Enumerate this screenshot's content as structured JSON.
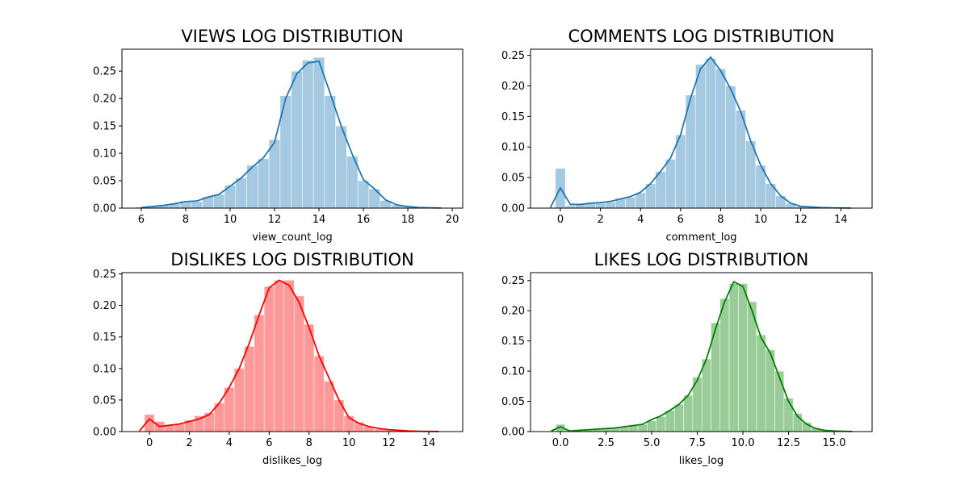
{
  "chart_data": [
    {
      "type": "histogram",
      "title": "VIEWS LOG DISTRIBUTION",
      "xlabel": "view_count_log",
      "color": "#1f77b4",
      "bins": [
        5.75,
        6.25,
        6.75,
        7.25,
        7.75,
        8.25,
        8.75,
        9.25,
        9.75,
        10.25,
        10.75,
        11.25,
        11.75,
        12.25,
        12.75,
        13.25,
        13.75,
        14.25,
        14.75,
        15.25,
        15.75,
        16.25,
        16.75,
        17.25,
        17.75,
        18.25,
        18.75,
        19.25,
        19.75
      ],
      "counts": [
        0.002,
        0.003,
        0.005,
        0.008,
        0.013,
        0.012,
        0.021,
        0.025,
        0.042,
        0.055,
        0.078,
        0.09,
        0.125,
        0.205,
        0.25,
        0.27,
        0.275,
        0.205,
        0.15,
        0.095,
        0.05,
        0.035,
        0.014,
        0.006,
        0.003,
        0.001,
        0.0006,
        0.0002
      ],
      "kde": {
        "x": [
          6,
          6.5,
          7,
          7.5,
          8,
          8.5,
          9,
          9.5,
          10,
          10.5,
          11,
          11.5,
          12,
          12.5,
          13,
          13.5,
          14,
          14.5,
          15,
          15.5,
          16,
          16.5,
          17,
          17.5,
          18,
          18.5,
          19,
          19.5
        ],
        "values": [
          0.001,
          0.003,
          0.005,
          0.008,
          0.012,
          0.013,
          0.02,
          0.025,
          0.04,
          0.055,
          0.075,
          0.092,
          0.12,
          0.2,
          0.245,
          0.265,
          0.268,
          0.21,
          0.15,
          0.098,
          0.052,
          0.035,
          0.015,
          0.006,
          0.003,
          0.001,
          0.0005,
          0.0002
        ]
      },
      "xlim": [
        5.13,
        20.47
      ],
      "ylim": [
        0,
        0.29
      ],
      "xticks": [
        6,
        8,
        10,
        12,
        14,
        16,
        18,
        20
      ],
      "yticks": [
        {
          "value": 0,
          "label": "0.00"
        },
        {
          "value": 0.05,
          "label": "0.05"
        },
        {
          "value": 0.1,
          "label": "0.10"
        },
        {
          "value": 0.15,
          "label": "0.15"
        },
        {
          "value": 0.2,
          "label": "0.20"
        },
        {
          "value": 0.25,
          "label": "0.25"
        }
      ]
    },
    {
      "type": "histogram",
      "title": "COMMENTS LOG DISTRIBUTION",
      "xlabel": "comment_log",
      "color": "#1f77b4",
      "bins": [
        -0.25,
        0.25,
        0.75,
        1.25,
        1.75,
        2.25,
        2.75,
        3.25,
        3.75,
        4.25,
        4.75,
        5.25,
        5.75,
        6.25,
        6.75,
        7.25,
        7.75,
        8.25,
        8.75,
        9.25,
        9.75,
        10.25,
        10.75,
        11.25,
        11.75,
        12.25,
        12.75,
        13.25,
        13.75,
        14.25,
        14.75
      ],
      "counts": [
        0.065,
        0.004,
        0.006,
        0.007,
        0.008,
        0.01,
        0.016,
        0.018,
        0.025,
        0.04,
        0.06,
        0.08,
        0.12,
        0.185,
        0.235,
        0.245,
        0.228,
        0.2,
        0.16,
        0.11,
        0.07,
        0.04,
        0.02,
        0.008,
        0.003,
        0.002,
        0.001,
        0.0005,
        0.0003,
        0.0001
      ],
      "kde": {
        "x": [
          -0.5,
          0,
          0.5,
          1,
          1.5,
          2,
          2.5,
          3,
          3.5,
          4,
          4.5,
          5,
          5.5,
          6,
          6.5,
          7,
          7.5,
          8,
          8.5,
          9,
          9.5,
          10,
          10.5,
          11,
          11.5,
          12,
          12.5,
          13,
          13.5,
          14,
          14.5
        ],
        "values": [
          0.001,
          0.033,
          0.006,
          0.006,
          0.008,
          0.009,
          0.011,
          0.015,
          0.019,
          0.026,
          0.04,
          0.06,
          0.082,
          0.12,
          0.18,
          0.228,
          0.247,
          0.225,
          0.195,
          0.158,
          0.11,
          0.07,
          0.04,
          0.02,
          0.008,
          0.003,
          0.002,
          0.001,
          0.0005,
          0.0003,
          0.0001
        ]
      },
      "xlim": [
        -1.49,
        15.56
      ],
      "ylim": [
        0,
        0.26
      ],
      "xticks": [
        0,
        2,
        4,
        6,
        8,
        10,
        12,
        14
      ],
      "yticks": [
        {
          "value": 0,
          "label": "0.00"
        },
        {
          "value": 0.05,
          "label": "0.05"
        },
        {
          "value": 0.1,
          "label": "0.10"
        },
        {
          "value": 0.15,
          "label": "0.15"
        },
        {
          "value": 0.2,
          "label": "0.20"
        },
        {
          "value": 0.25,
          "label": "0.25"
        }
      ]
    },
    {
      "type": "histogram",
      "title": "DISLIKES LOG DISTRIBUTION",
      "xlabel": "dislikes_log",
      "color": "#ff0000",
      "bins": [
        -0.25,
        0.25,
        0.75,
        1.25,
        1.75,
        2.25,
        2.75,
        3.25,
        3.75,
        4.25,
        4.75,
        5.25,
        5.75,
        6.25,
        6.75,
        7.25,
        7.75,
        8.25,
        8.75,
        9.25,
        9.75,
        10.25,
        10.75,
        11.25,
        11.75,
        12.25,
        12.75,
        13.25,
        13.75,
        14.25,
        14.75
      ],
      "counts": [
        0.027,
        0.016,
        0.01,
        0.012,
        0.018,
        0.025,
        0.03,
        0.045,
        0.07,
        0.1,
        0.135,
        0.185,
        0.23,
        0.24,
        0.24,
        0.215,
        0.17,
        0.12,
        0.08,
        0.05,
        0.025,
        0.015,
        0.008,
        0.004,
        0.003,
        0.002,
        0.001,
        0.0005,
        0.0003,
        0.0001
      ],
      "kde": {
        "x": [
          -0.5,
          0,
          0.5,
          1,
          1.5,
          2,
          2.5,
          3,
          3.5,
          4,
          4.5,
          5,
          5.5,
          6,
          6.5,
          7,
          7.5,
          8,
          8.5,
          9,
          9.5,
          10,
          10.5,
          11,
          11.5,
          12,
          12.5,
          13,
          13.5,
          14,
          14.5
        ],
        "values": [
          0.001,
          0.02,
          0.008,
          0.01,
          0.012,
          0.016,
          0.02,
          0.027,
          0.045,
          0.07,
          0.1,
          0.14,
          0.185,
          0.228,
          0.24,
          0.232,
          0.205,
          0.165,
          0.12,
          0.085,
          0.05,
          0.022,
          0.013,
          0.008,
          0.005,
          0.003,
          0.002,
          0.001,
          0.0005,
          0.0003,
          0.0001
        ]
      },
      "xlim": [
        -1.38,
        15.7
      ],
      "ylim": [
        0,
        0.252
      ],
      "xticks": [
        0,
        2,
        4,
        6,
        8,
        10,
        12,
        14
      ],
      "yticks": [
        {
          "value": 0,
          "label": "0.00"
        },
        {
          "value": 0.05,
          "label": "0.05"
        },
        {
          "value": 0.1,
          "label": "0.10"
        },
        {
          "value": 0.15,
          "label": "0.15"
        },
        {
          "value": 0.2,
          "label": "0.20"
        },
        {
          "value": 0.25,
          "label": "0.25"
        }
      ]
    },
    {
      "type": "histogram",
      "title": "LIKES LOG DISTRIBUTION",
      "xlabel": "likes_log",
      "color": "#008000",
      "bins": [
        -0.25,
        0.25,
        0.75,
        1.25,
        1.75,
        2.25,
        2.75,
        3.25,
        3.75,
        4.25,
        4.75,
        5.25,
        5.75,
        6.25,
        6.75,
        7.25,
        7.75,
        8.25,
        8.75,
        9.25,
        9.75,
        10.25,
        10.75,
        11.25,
        11.75,
        12.25,
        12.75,
        13.25,
        13.75,
        14.25,
        14.75,
        15.25,
        15.75
      ],
      "counts": [
        0.012,
        0.002,
        0.002,
        0.003,
        0.004,
        0.005,
        0.006,
        0.008,
        0.01,
        0.012,
        0.018,
        0.025,
        0.035,
        0.045,
        0.06,
        0.09,
        0.12,
        0.18,
        0.22,
        0.245,
        0.245,
        0.215,
        0.16,
        0.135,
        0.1,
        0.055,
        0.03,
        0.015,
        0.006,
        0.003,
        0.001,
        0.0005
      ],
      "kde": {
        "x": [
          -0.5,
          0,
          0.5,
          1,
          1.5,
          2,
          2.5,
          3,
          3.5,
          4,
          4.5,
          5,
          5.5,
          6,
          6.5,
          7,
          7.5,
          8,
          8.5,
          9,
          9.5,
          10,
          10.5,
          11,
          11.5,
          12,
          12.5,
          13,
          13.5,
          14,
          14.5,
          15,
          15.5,
          16
        ],
        "values": [
          0.001,
          0.008,
          0.001,
          0.002,
          0.003,
          0.004,
          0.005,
          0.006,
          0.008,
          0.01,
          0.012,
          0.02,
          0.026,
          0.035,
          0.045,
          0.06,
          0.085,
          0.12,
          0.17,
          0.215,
          0.248,
          0.24,
          0.2,
          0.155,
          0.13,
          0.09,
          0.05,
          0.025,
          0.012,
          0.005,
          0.002,
          0.001,
          0.0005,
          0.0002
        ]
      },
      "xlim": [
        -1.64,
        17.08
      ],
      "ylim": [
        0,
        0.263
      ],
      "xticks": [
        {
          "value": 0,
          "label": "0.0"
        },
        {
          "value": 2.5,
          "label": "2.5"
        },
        {
          "value": 5,
          "label": "5.0"
        },
        {
          "value": 7.5,
          "label": "7.5"
        },
        {
          "value": 10,
          "label": "10.0"
        },
        {
          "value": 12.5,
          "label": "12.5"
        },
        {
          "value": 15,
          "label": "15.0"
        }
      ],
      "yticks": [
        {
          "value": 0,
          "label": "0.00"
        },
        {
          "value": 0.05,
          "label": "0.05"
        },
        {
          "value": 0.1,
          "label": "0.10"
        },
        {
          "value": 0.15,
          "label": "0.15"
        },
        {
          "value": 0.2,
          "label": "0.20"
        },
        {
          "value": 0.25,
          "label": "0.25"
        }
      ]
    }
  ]
}
